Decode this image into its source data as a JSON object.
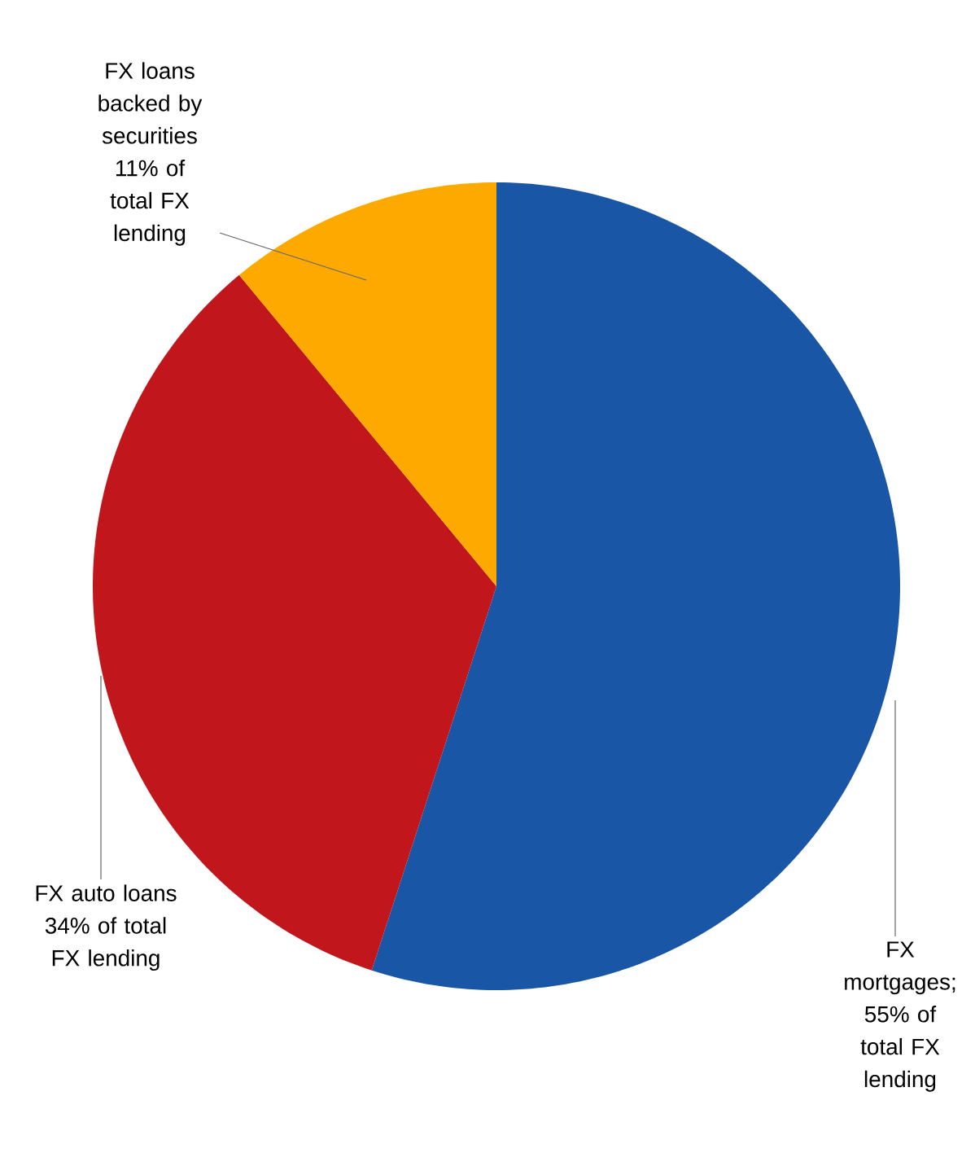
{
  "chart_data": {
    "type": "pie",
    "categories": [
      "FX mortgages; 55% of total FX lending",
      "FX auto loans 34% of total FX lending",
      "FX loans backed by securities 11% of total FX lending"
    ],
    "values": [
      55,
      34,
      11
    ],
    "colors": [
      "#1a56a6",
      "#c1161c",
      "#fda900"
    ]
  }
}
